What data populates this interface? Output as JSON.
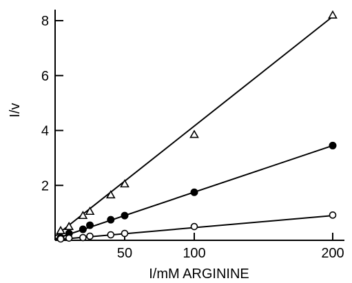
{
  "chart_data": {
    "type": "scatter",
    "xlabel": "I/mM ARGININE",
    "ylabel": "I/v",
    "xlim": [
      0,
      200
    ],
    "ylim": [
      0,
      8
    ],
    "grid": false,
    "x_ticks": [
      50,
      100,
      200
    ],
    "y_ticks": [
      2,
      4,
      6,
      8
    ],
    "series": [
      {
        "marker": "open-triangle",
        "points": [
          [
            4,
            0.35
          ],
          [
            10,
            0.5
          ],
          [
            20,
            0.9
          ],
          [
            25,
            1.05
          ],
          [
            40,
            1.65
          ],
          [
            50,
            2.05
          ],
          [
            100,
            3.85
          ],
          [
            200,
            8.2
          ]
        ],
        "fit": [
          [
            0,
            0.15
          ],
          [
            200,
            8.15
          ]
        ]
      },
      {
        "marker": "filled-circle",
        "points": [
          [
            4,
            0.1
          ],
          [
            10,
            0.25
          ],
          [
            20,
            0.4
          ],
          [
            25,
            0.55
          ],
          [
            40,
            0.75
          ],
          [
            50,
            0.9
          ],
          [
            100,
            1.75
          ],
          [
            200,
            3.45
          ]
        ],
        "fit": [
          [
            0,
            0.05
          ],
          [
            200,
            3.45
          ]
        ]
      },
      {
        "marker": "open-circle",
        "points": [
          [
            4,
            0.05
          ],
          [
            10,
            0.08
          ],
          [
            20,
            0.1
          ],
          [
            25,
            0.15
          ],
          [
            40,
            0.2
          ],
          [
            50,
            0.25
          ],
          [
            100,
            0.5
          ],
          [
            200,
            0.92
          ]
        ],
        "fit": [
          [
            0,
            0.02
          ],
          [
            200,
            0.9
          ]
        ]
      }
    ]
  }
}
